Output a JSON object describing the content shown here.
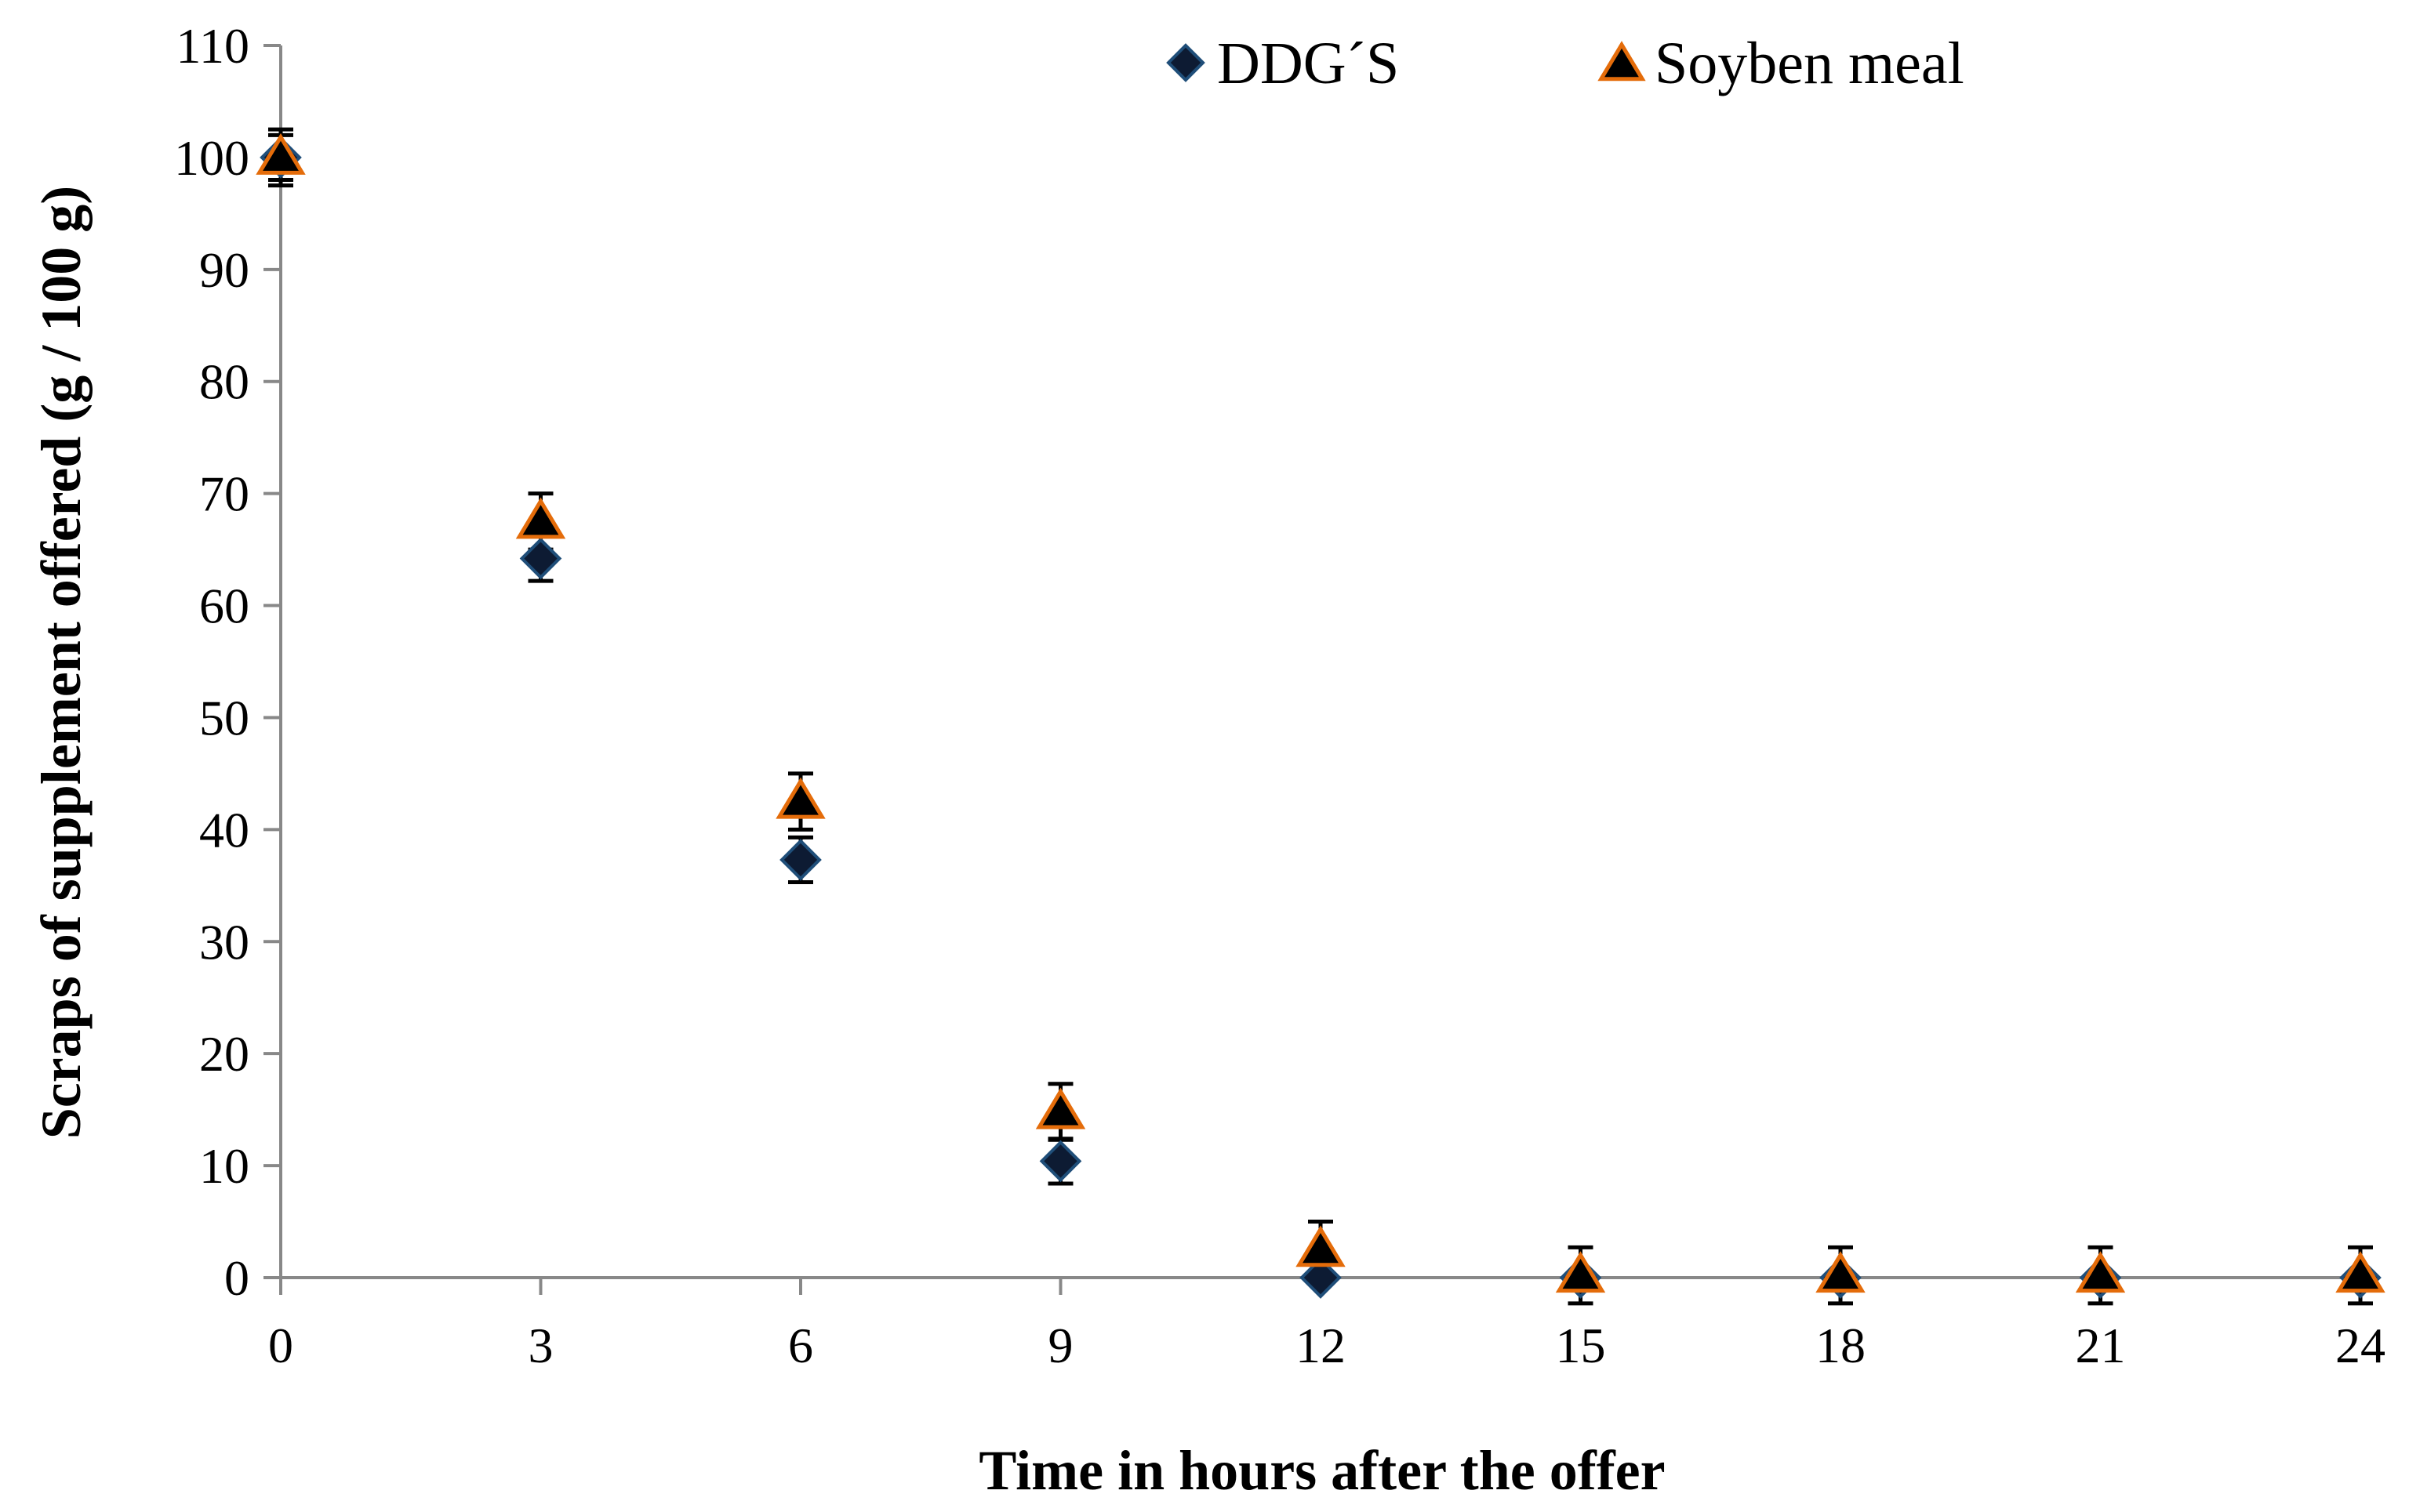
{
  "chart_data": {
    "type": "scatter",
    "xlabel": "Time in hours after the offer",
    "ylabel": "Scraps of supplement offered (g / 100 g)",
    "xlim": [
      0,
      24
    ],
    "ylim": [
      0,
      110
    ],
    "x_ticks": [
      0,
      3,
      6,
      9,
      12,
      15,
      18,
      21,
      24
    ],
    "y_ticks": [
      0,
      10,
      20,
      30,
      40,
      50,
      60,
      70,
      80,
      90,
      100,
      110
    ],
    "grid": false,
    "legend_position": "top",
    "x": [
      0,
      3,
      6,
      9,
      12,
      15,
      18,
      21,
      24
    ],
    "series": [
      {
        "name": "DDG´S",
        "marker": "diamond",
        "color": "#0d1b33",
        "edge_color": "#1f4e79",
        "values": [
          100,
          64.2,
          37.3,
          10.4,
          0,
          0,
          0,
          0,
          0
        ],
        "errors": [
          2,
          2,
          2,
          2,
          0,
          0,
          0,
          0,
          0
        ]
      },
      {
        "name": "Soyben meal",
        "marker": "triangle",
        "color": "#000000",
        "edge_color": "#e46c0a",
        "values": [
          100,
          67.5,
          42.5,
          14.8,
          2.5,
          0.2,
          0.2,
          0.2,
          0.2
        ],
        "errors": [
          2.5,
          2.5,
          2.5,
          2.5,
          2.5,
          2.5,
          2.5,
          2.5,
          2.5
        ]
      }
    ]
  }
}
